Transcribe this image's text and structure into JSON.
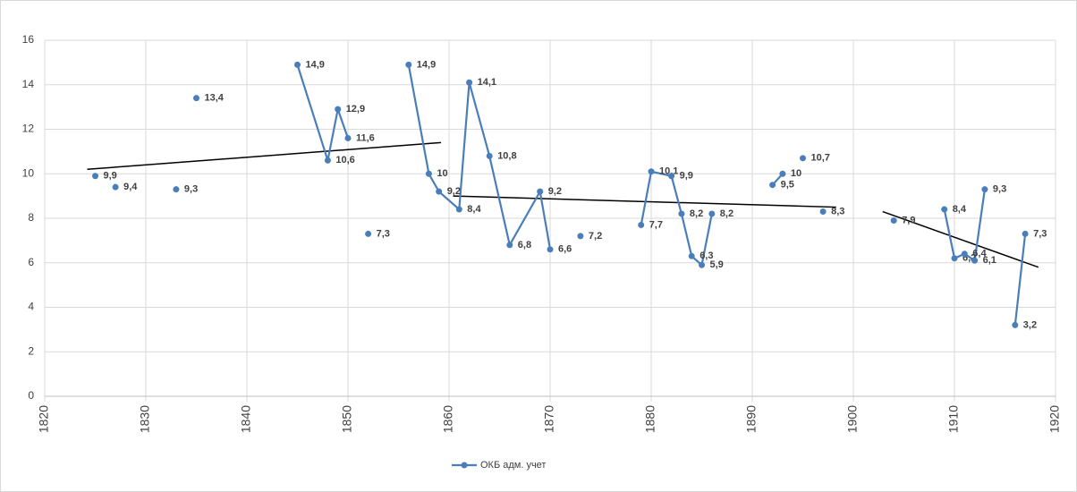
{
  "chart_data": {
    "type": "line",
    "x": [
      1825,
      null,
      1827,
      null,
      1833,
      null,
      1835,
      null,
      1845,
      1848,
      1849,
      1850,
      null,
      1852,
      null,
      1856,
      1858,
      1859,
      1861,
      1862,
      1864,
      1866,
      1869,
      1870,
      null,
      1873,
      null,
      1879,
      1880,
      1882,
      1883,
      1884,
      1885,
      1886,
      null,
      1892,
      1893,
      null,
      1895,
      null,
      1897,
      null,
      1904,
      null,
      1909,
      1910,
      1911,
      1912,
      1913,
      null,
      1916,
      1917
    ],
    "series": [
      {
        "name": "ОКБ адм. учет",
        "color": "#4a7ebb",
        "values": [
          9.9,
          null,
          9.4,
          null,
          9.3,
          null,
          13.4,
          null,
          14.9,
          10.6,
          12.9,
          11.6,
          null,
          7.3,
          null,
          14.9,
          10,
          9.2,
          8.4,
          14.1,
          10.8,
          6.8,
          9.2,
          6.6,
          null,
          7.2,
          null,
          7.7,
          10.1,
          9.9,
          8.2,
          6.3,
          5.9,
          8.2,
          null,
          9.5,
          10,
          null,
          10.7,
          null,
          8.3,
          null,
          7.9,
          null,
          8.4,
          6.2,
          6.4,
          6.1,
          9.3,
          null,
          3.2,
          7.3
        ],
        "value_labels": [
          "9,9",
          null,
          "9,4",
          null,
          "9,3",
          null,
          "13,4",
          null,
          "14,9",
          "10,6",
          "12,9",
          "11,6",
          null,
          "7,3",
          null,
          "14,9",
          "10",
          "9,2",
          "8,4",
          "14,1",
          "10,8",
          "6,8",
          "9,2",
          "6,6",
          null,
          "7,2",
          null,
          "7,7",
          "10,1",
          "9,9",
          "8,2",
          "6,3",
          "5,9",
          "8,2",
          null,
          "9,5",
          "10",
          null,
          "10,7",
          null,
          "8,3",
          null,
          "7,9",
          null,
          "8,4",
          "6,2",
          "6,4",
          "6,1",
          "9,3",
          null,
          "3,2",
          "7,3"
        ]
      }
    ],
    "trendlines": [
      {
        "color": "#000000",
        "x": [
          1824.2,
          1859.2
        ],
        "y": [
          10.2,
          11.4
        ]
      },
      {
        "color": "#000000",
        "x": [
          1860.4,
          1898.3
        ],
        "y": [
          9.0,
          8.5
        ]
      },
      {
        "color": "#000000",
        "x": [
          1902.9,
          1918.3
        ],
        "y": [
          8.3,
          5.8
        ]
      }
    ],
    "xlim": [
      1820,
      1920
    ],
    "xticks": [
      1820,
      1830,
      1840,
      1850,
      1860,
      1870,
      1880,
      1890,
      1900,
      1910,
      1920
    ],
    "ylim": [
      0,
      16
    ],
    "yticks": [
      0,
      2,
      4,
      6,
      8,
      10,
      12,
      14,
      16
    ],
    "grid": true,
    "legend": "bottom"
  }
}
